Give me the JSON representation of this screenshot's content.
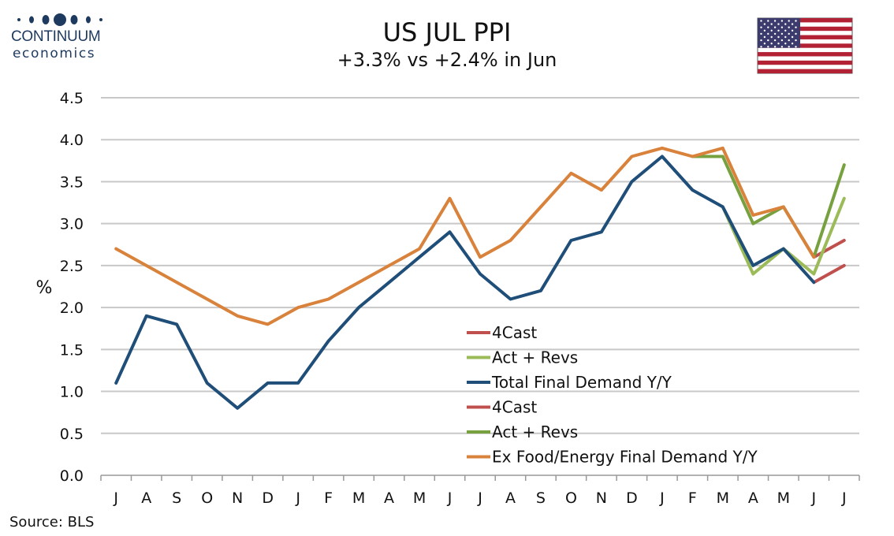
{
  "header": {
    "logo_brand": "CONTINUUM",
    "logo_sub": "economics",
    "title": "US JUL PPI",
    "subtitle": "+3.3% vs +2.4% in Jun",
    "flag_icon": "us-flag-icon"
  },
  "footer": {
    "source": "Source: BLS"
  },
  "colors": {
    "total_final_demand": "#1f4e79",
    "ex_food_energy": "#d9823b",
    "act_revs_total": "#9bbb59",
    "act_revs_core": "#77a03f",
    "forecast": "#c0504d",
    "grid": "#c8c8c8",
    "logo": "#1f3a5f"
  },
  "chart_data": {
    "type": "line",
    "ylabel": "%",
    "xlabel": "",
    "ylim": [
      0,
      4.5
    ],
    "yticks": [
      "0.0",
      "0.5",
      "1.0",
      "1.5",
      "2.0",
      "2.5",
      "3.0",
      "3.5",
      "4.0",
      "4.5"
    ],
    "grid": "horizontal",
    "legend_placement": "center-right",
    "categories": [
      "J",
      "A",
      "S",
      "O",
      "N",
      "D",
      "J",
      "F",
      "M",
      "A",
      "M",
      "J",
      "J",
      "A",
      "S",
      "O",
      "N",
      "D",
      "J",
      "F",
      "M",
      "A",
      "M",
      "J",
      "J"
    ],
    "series": [
      {
        "name": "4Cast",
        "color": "#c0504d",
        "values": [
          null,
          null,
          null,
          null,
          null,
          null,
          null,
          null,
          null,
          null,
          null,
          null,
          null,
          null,
          null,
          null,
          null,
          null,
          null,
          null,
          null,
          null,
          null,
          2.3,
          2.5
        ]
      },
      {
        "name": "Act + Revs",
        "color": "#9bbb59",
        "values": [
          null,
          null,
          null,
          null,
          null,
          null,
          null,
          null,
          null,
          null,
          null,
          null,
          null,
          null,
          null,
          null,
          null,
          null,
          null,
          null,
          3.2,
          2.4,
          2.7,
          2.4,
          3.3
        ]
      },
      {
        "name": "Total Final Demand Y/Y",
        "color": "#1f4e79",
        "values": [
          1.1,
          1.9,
          1.8,
          1.1,
          0.8,
          1.1,
          1.1,
          1.6,
          2.0,
          2.3,
          2.6,
          2.9,
          2.4,
          2.1,
          2.2,
          2.8,
          2.9,
          3.5,
          3.8,
          3.4,
          3.2,
          2.5,
          2.7,
          2.3,
          null
        ]
      },
      {
        "name": "4Cast",
        "color": "#c0504d",
        "values": [
          null,
          null,
          null,
          null,
          null,
          null,
          null,
          null,
          null,
          null,
          null,
          null,
          null,
          null,
          null,
          null,
          null,
          null,
          null,
          null,
          null,
          null,
          null,
          2.6,
          2.8
        ]
      },
      {
        "name": "Act + Revs",
        "color": "#77a03f",
        "values": [
          null,
          null,
          null,
          null,
          null,
          null,
          null,
          null,
          null,
          null,
          null,
          null,
          null,
          null,
          null,
          null,
          null,
          null,
          null,
          3.8,
          3.8,
          3.0,
          3.2,
          2.6,
          3.7
        ]
      },
      {
        "name": "Ex Food/Energy Final Demand Y/Y",
        "color": "#d9823b",
        "values": [
          2.7,
          null,
          null,
          null,
          1.9,
          1.8,
          2.0,
          2.1,
          2.3,
          2.5,
          2.7,
          3.3,
          2.6,
          2.8,
          3.2,
          3.6,
          3.4,
          3.8,
          3.9,
          3.8,
          3.9,
          3.1,
          3.2,
          2.6,
          null
        ]
      }
    ]
  }
}
